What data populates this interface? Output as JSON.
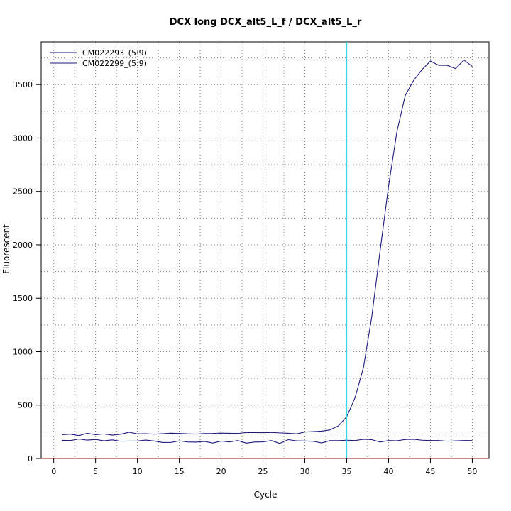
{
  "chart_data": {
    "type": "line",
    "title": "DCX long DCX_alt5_L_f / DCX_alt5_L_r",
    "xlabel": "Cycle",
    "ylabel": "Fluorescent",
    "xlim": [
      -1.5,
      52
    ],
    "ylim": [
      0,
      3900
    ],
    "x_ticks": [
      0,
      5,
      10,
      15,
      20,
      25,
      30,
      35,
      40,
      45,
      50
    ],
    "y_ticks": [
      0,
      500,
      1000,
      1500,
      2000,
      2500,
      3000,
      3500
    ],
    "grid": true,
    "threshold_x": 35,
    "legend_placement": "top-left",
    "colors": {
      "series": "#1a1a80",
      "threshold": "#33d6e6",
      "grid": "#808080",
      "baseline": "#8b1a1a"
    },
    "series": [
      {
        "name": "CM022293_(5:9)",
        "x": [
          1,
          2,
          3,
          4,
          5,
          6,
          7,
          8,
          9,
          10,
          11,
          12,
          13,
          14,
          15,
          16,
          17,
          18,
          19,
          20,
          21,
          22,
          23,
          24,
          25,
          26,
          27,
          28,
          29,
          30,
          31,
          32,
          33,
          34,
          35,
          36,
          37,
          38,
          39,
          40,
          41,
          42,
          43,
          44,
          45,
          46,
          47,
          48,
          49,
          50
        ],
        "values": [
          223,
          228,
          214,
          236,
          223,
          230,
          219,
          227,
          246,
          231,
          232,
          228,
          232,
          237,
          235,
          231,
          229,
          234,
          235,
          238,
          236,
          235,
          243,
          243,
          242,
          244,
          240,
          236,
          231,
          248,
          252,
          256,
          268,
          305,
          390,
          570,
          850,
          1330,
          1950,
          2550,
          3060,
          3400,
          3540,
          3640,
          3720,
          3680,
          3680,
          3650,
          3730,
          3670
        ]
      },
      {
        "name": "CM022299_(5:9)",
        "x": [
          1,
          2,
          3,
          4,
          5,
          6,
          7,
          8,
          9,
          10,
          11,
          12,
          13,
          14,
          15,
          16,
          17,
          18,
          19,
          20,
          21,
          22,
          23,
          24,
          25,
          26,
          27,
          28,
          29,
          30,
          31,
          32,
          33,
          34,
          35,
          36,
          37,
          38,
          39,
          40,
          41,
          42,
          43,
          44,
          45,
          46,
          47,
          48,
          49,
          50
        ],
        "values": [
          170,
          168,
          182,
          172,
          178,
          166,
          174,
          162,
          163,
          164,
          172,
          164,
          150,
          151,
          165,
          155,
          153,
          160,
          145,
          163,
          155,
          168,
          144,
          154,
          156,
          168,
          141,
          176,
          166,
          164,
          161,
          146,
          167,
          167,
          171,
          168,
          180,
          176,
          154,
          168,
          166,
          178,
          180,
          171,
          168,
          168,
          162,
          165,
          168,
          168
        ]
      }
    ]
  }
}
